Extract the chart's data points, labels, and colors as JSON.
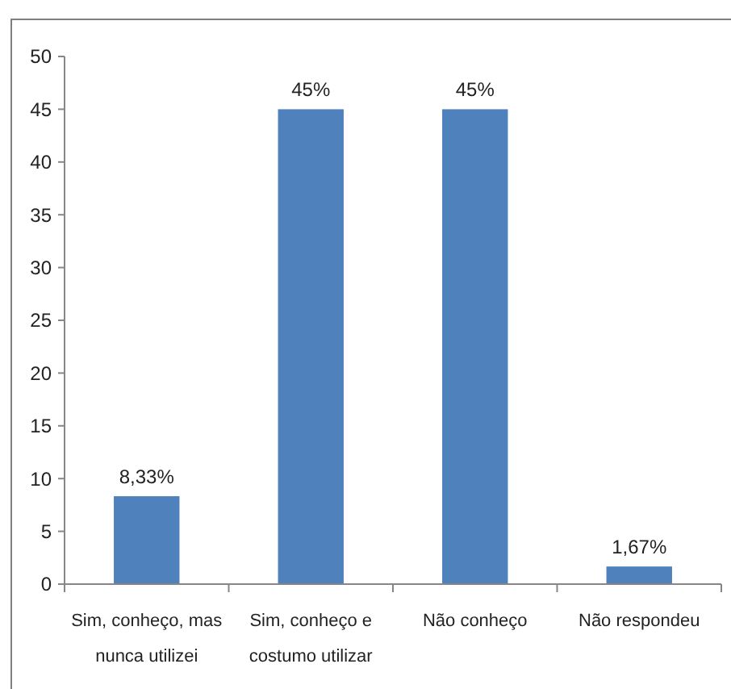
{
  "chart_data": {
    "type": "bar",
    "categories": [
      "Sim, conheço, mas nunca utilizei",
      "Sim, conheço e costumo utilizar",
      "Não conheço",
      "Não respondeu"
    ],
    "values": [
      8.33,
      45,
      45,
      1.67
    ],
    "value_labels": [
      "8,33%",
      "45%",
      "45%",
      "1,67%"
    ],
    "color": "#4f81bd",
    "ylim": [
      0,
      50
    ],
    "yticks": [
      0,
      5,
      10,
      15,
      20,
      25,
      30,
      35,
      40,
      45,
      50
    ],
    "grid": false
  }
}
